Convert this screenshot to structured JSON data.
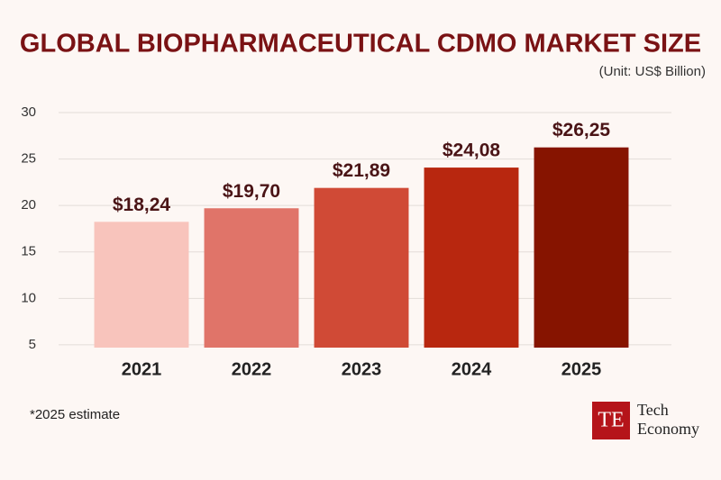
{
  "chart_data": {
    "type": "bar",
    "title": "GLOBAL BIOPHARMACEUTICAL CDMO MARKET SIZE",
    "subtitle": "(Unit: US$ Billion)",
    "categories": [
      "2021",
      "2022",
      "2023",
      "2024",
      "2025"
    ],
    "values": [
      18.24,
      19.7,
      21.89,
      24.08,
      26.25
    ],
    "value_labels": [
      "$18,24",
      "$19,70",
      "$21,89",
      "$24,08",
      "$26,25"
    ],
    "colors": [
      "#f8c4bc",
      "#e07469",
      "#d04a36",
      "#b8270f",
      "#861400"
    ],
    "ylim": [
      4.7,
      30
    ],
    "yticks": [
      5,
      10,
      15,
      20,
      25,
      30
    ],
    "grid": true,
    "footnote": "*2025 estimate"
  },
  "logo": {
    "mark": "TE",
    "line1": "Tech",
    "line2": "Economy"
  }
}
